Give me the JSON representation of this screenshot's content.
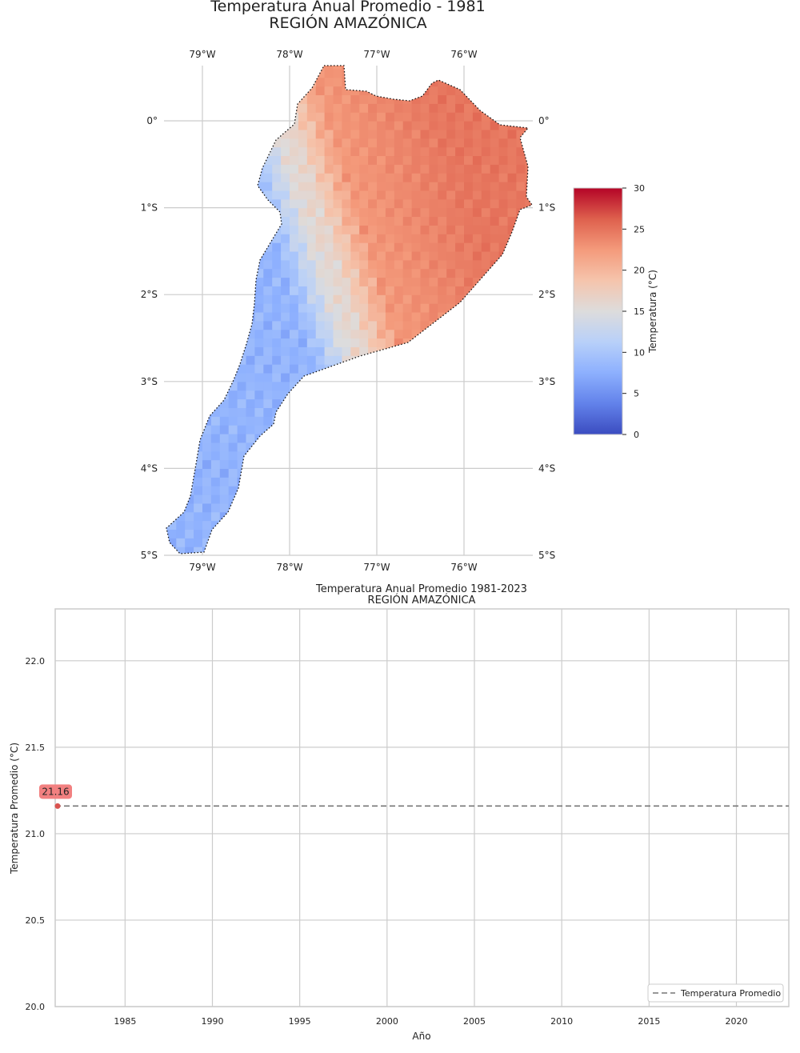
{
  "chart_data": [
    {
      "type": "heatmap",
      "title": "Temperatura Anual Promedio - 1981",
      "subtitle": "REGIÓN AMAZÓNICA",
      "x_ticks": [
        "79°W",
        "78°W",
        "77°W",
        "76°W"
      ],
      "y_ticks": [
        "0°",
        "1°S",
        "2°S",
        "3°S",
        "4°S",
        "5°S"
      ],
      "lon_range": [
        -79.5,
        -75.3
      ],
      "lat_range": [
        -5.0,
        0.65
      ],
      "grid": true,
      "colorbar": {
        "label": "Temperatura (°C)",
        "range": [
          0,
          30
        ],
        "ticks": [
          "0",
          "5",
          "10",
          "15",
          "20",
          "25",
          "30"
        ],
        "colormap": "coolwarm",
        "colors": [
          "#3b4cc0",
          "#6282ea",
          "#8db0fe",
          "#b8d0f9",
          "#dddcdc",
          "#f5c4ac",
          "#f49a7b",
          "#de604d",
          "#b40426"
        ]
      }
    },
    {
      "type": "line",
      "title": "Temperatura Anual Promedio 1981-2023",
      "subtitle": "REGIÓN AMAZÓNICA",
      "xlabel": "Año",
      "ylabel": "Temperatura Promedio (°C)",
      "xlim": [
        1981,
        2023
      ],
      "ylim": [
        20.0,
        22.3
      ],
      "x_ticks": [
        1985,
        1990,
        1995,
        2000,
        2005,
        2010,
        2015,
        2020
      ],
      "y_ticks": [
        "20.0",
        "20.5",
        "21.0",
        "21.5",
        "22.0"
      ],
      "grid": true,
      "points": [
        {
          "x": 1981,
          "y": 21.16
        }
      ],
      "point_label": "21.16",
      "mean_line": {
        "value": 21.16,
        "name": "Temperatura Promedio"
      },
      "legend_position": "bottom-right",
      "colors": {
        "point": "#d9534f",
        "label_bg": "#f28080",
        "mean_line": "#777777"
      }
    }
  ]
}
